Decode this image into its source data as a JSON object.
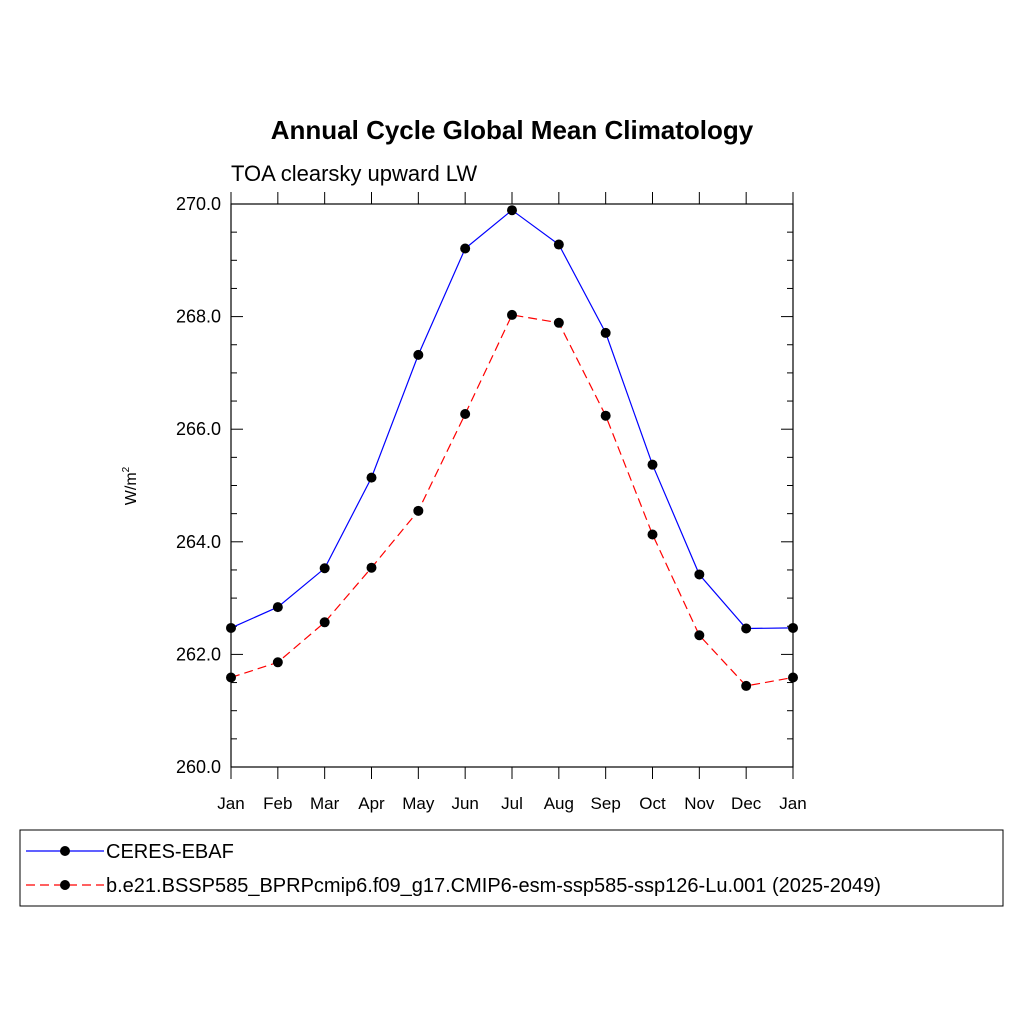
{
  "chart_data": {
    "type": "line",
    "title": "Annual Cycle Global Mean Climatology",
    "subtitle": "TOA clearsky upward LW",
    "ylabel": "W/m",
    "ylabel_sup": "2",
    "xlabel": "",
    "categories": [
      "Jan",
      "Feb",
      "Mar",
      "Apr",
      "May",
      "Jun",
      "Jul",
      "Aug",
      "Sep",
      "Oct",
      "Nov",
      "Dec",
      "Jan"
    ],
    "ylim": [
      260.0,
      270.0
    ],
    "yticks": [
      "270.0",
      "268.0",
      "266.0",
      "264.0",
      "262.0",
      "260.0"
    ],
    "ytick_values": [
      270,
      268,
      266,
      264,
      262,
      260
    ],
    "grid": false,
    "legend_position": "bottom",
    "series": [
      {
        "name": "CERES-EBAF",
        "color": "#0000ff",
        "dash": "solid",
        "marker": "filled-circle",
        "values": [
          262.47,
          262.84,
          263.53,
          265.14,
          267.32,
          269.21,
          269.89,
          269.28,
          267.71,
          265.37,
          263.42,
          262.46,
          262.47
        ]
      },
      {
        "name": "b.e21.BSSP585_BPRPcmip6.f09_g17.CMIP6-esm-ssp585-ssp126-Lu.001 (2025-2049)",
        "color": "#ff0000",
        "dash": "dashed",
        "marker": "filled-circle",
        "values": [
          261.59,
          261.86,
          262.57,
          263.54,
          264.55,
          266.27,
          268.03,
          267.89,
          266.24,
          264.13,
          262.34,
          261.44,
          261.59
        ]
      }
    ]
  }
}
